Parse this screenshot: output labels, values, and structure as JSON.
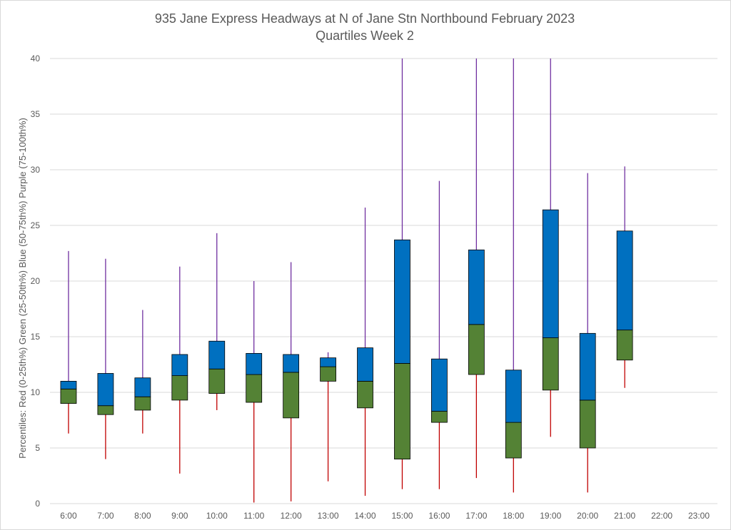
{
  "chart_data": {
    "type": "box",
    "title": [
      "935 Jane Express Headways at N of Jane Stn Northbound February 2023",
      "Quartiles Week 2"
    ],
    "ylabel": "Percentiles:  Red (0-25th%)  Green (25-50th%)  Blue (50-75th%)  Purple (75-100th%)",
    "xlabel": "",
    "ylim": [
      0,
      40
    ],
    "yticks": [
      0,
      5,
      10,
      15,
      20,
      25,
      30,
      35,
      40
    ],
    "grid": true,
    "categories": [
      "6:00",
      "7:00",
      "8:00",
      "9:00",
      "10:00",
      "11:00",
      "12:00",
      "13:00",
      "14:00",
      "15:00",
      "16:00",
      "17:00",
      "18:00",
      "19:00",
      "20:00",
      "21:00",
      "22:00",
      "23:00"
    ],
    "min": [
      6.3,
      4.0,
      6.3,
      2.7,
      8.4,
      0.1,
      0.2,
      2.0,
      0.7,
      1.3,
      1.3,
      2.3,
      1.0,
      6.0,
      1.0,
      10.4,
      null,
      null
    ],
    "q1": [
      9.0,
      8.0,
      8.4,
      9.3,
      9.9,
      9.1,
      7.7,
      11.0,
      8.6,
      4.0,
      7.3,
      11.6,
      4.1,
      10.2,
      5.0,
      12.9,
      null,
      null
    ],
    "median": [
      10.3,
      8.8,
      9.6,
      11.5,
      12.1,
      11.6,
      11.8,
      12.3,
      11.0,
      12.6,
      8.3,
      16.1,
      7.3,
      14.9,
      9.3,
      15.6,
      null,
      null
    ],
    "q3": [
      11.0,
      11.7,
      11.3,
      13.4,
      14.6,
      13.5,
      13.4,
      13.1,
      14.0,
      23.7,
      13.0,
      22.8,
      12.0,
      26.4,
      15.3,
      24.5,
      null,
      null
    ],
    "max": [
      22.7,
      22.0,
      17.4,
      21.3,
      24.3,
      20.0,
      21.7,
      13.6,
      26.6,
      40,
      29.0,
      40,
      40,
      40,
      29.7,
      30.3,
      null,
      null
    ],
    "colors": {
      "lower_whisker": "#c00000",
      "lower_box": "#548235",
      "upper_box": "#0070c0",
      "upper_whisker": "#7030a0",
      "grid": "#d9d9d9",
      "text": "#595959"
    }
  }
}
